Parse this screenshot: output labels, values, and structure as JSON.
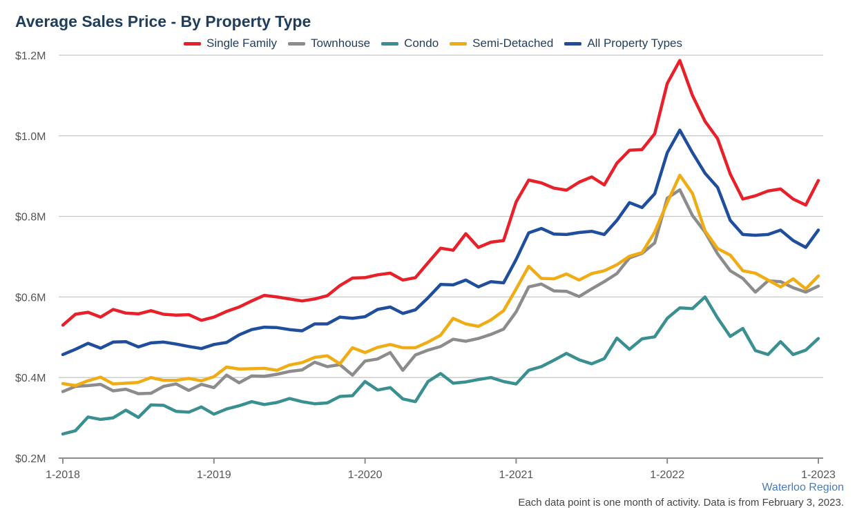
{
  "title": "Average Sales Price - By Property Type",
  "source_label": "Waterloo Region",
  "footnote": "Each data point is one month of activity. Data is from February 3, 2023.",
  "chart_data": {
    "type": "line",
    "title": "Average Sales Price - By Property Type",
    "xlabel": "",
    "ylabel": "",
    "ylim": [
      0.2,
      1.2
    ],
    "yticks": [
      0.2,
      0.4,
      0.6,
      0.8,
      1.0,
      1.2
    ],
    "ytick_labels": [
      "$0.2M",
      "$0.4M",
      "$0.6M",
      "$0.8M",
      "$1.0M",
      "$1.2M"
    ],
    "xticks": [
      "1-2018",
      "1-2019",
      "1-2020",
      "1-2021",
      "1-2022",
      "1-2023"
    ],
    "x": [
      "1-2018",
      "2-2018",
      "3-2018",
      "4-2018",
      "5-2018",
      "6-2018",
      "7-2018",
      "8-2018",
      "9-2018",
      "10-2018",
      "11-2018",
      "12-2018",
      "1-2019",
      "2-2019",
      "3-2019",
      "4-2019",
      "5-2019",
      "6-2019",
      "7-2019",
      "8-2019",
      "9-2019",
      "10-2019",
      "11-2019",
      "12-2019",
      "1-2020",
      "2-2020",
      "3-2020",
      "4-2020",
      "5-2020",
      "6-2020",
      "7-2020",
      "8-2020",
      "9-2020",
      "10-2020",
      "11-2020",
      "12-2020",
      "1-2021",
      "2-2021",
      "3-2021",
      "4-2021",
      "5-2021",
      "6-2021",
      "7-2021",
      "8-2021",
      "9-2021",
      "10-2021",
      "11-2021",
      "12-2021",
      "1-2022",
      "2-2022",
      "3-2022",
      "4-2022",
      "5-2022",
      "6-2022",
      "7-2022",
      "8-2022",
      "9-2022",
      "10-2022",
      "11-2022",
      "12-2022",
      "1-2023"
    ],
    "grid": true,
    "legend_position": "top-center",
    "series": [
      {
        "name": "Single Family",
        "color": "#e8202a",
        "values": [
          0.53,
          0.557,
          0.562,
          0.55,
          0.569,
          0.56,
          0.558,
          0.566,
          0.557,
          0.555,
          0.556,
          0.542,
          0.55,
          0.564,
          0.575,
          0.59,
          0.604,
          0.6,
          0.595,
          0.59,
          0.595,
          0.603,
          0.628,
          0.647,
          0.648,
          0.655,
          0.659,
          0.642,
          0.648,
          0.685,
          0.721,
          0.716,
          0.757,
          0.723,
          0.736,
          0.74,
          0.836,
          0.89,
          0.883,
          0.87,
          0.865,
          0.885,
          0.898,
          0.878,
          0.932,
          0.964,
          0.966,
          1.005,
          1.13,
          1.187,
          1.1,
          1.036,
          0.993,
          0.905,
          0.843,
          0.851,
          0.863,
          0.868,
          0.843,
          0.828,
          0.889
        ]
      },
      {
        "name": "Townhouse",
        "color": "#8c8c8c",
        "values": [
          0.365,
          0.378,
          0.38,
          0.383,
          0.367,
          0.371,
          0.36,
          0.361,
          0.378,
          0.384,
          0.368,
          0.383,
          0.375,
          0.406,
          0.387,
          0.404,
          0.403,
          0.408,
          0.415,
          0.419,
          0.438,
          0.427,
          0.432,
          0.406,
          0.441,
          0.446,
          0.462,
          0.418,
          0.456,
          0.468,
          0.477,
          0.495,
          0.49,
          0.497,
          0.507,
          0.52,
          0.563,
          0.625,
          0.632,
          0.615,
          0.614,
          0.601,
          0.62,
          0.638,
          0.658,
          0.697,
          0.708,
          0.734,
          0.845,
          0.866,
          0.802,
          0.761,
          0.707,
          0.665,
          0.646,
          0.612,
          0.64,
          0.638,
          0.623,
          0.612,
          0.627
        ]
      },
      {
        "name": "Condo",
        "color": "#3a9090",
        "values": [
          0.26,
          0.268,
          0.302,
          0.296,
          0.3,
          0.319,
          0.301,
          0.332,
          0.331,
          0.316,
          0.314,
          0.327,
          0.309,
          0.322,
          0.33,
          0.34,
          0.333,
          0.338,
          0.348,
          0.34,
          0.335,
          0.337,
          0.353,
          0.355,
          0.39,
          0.369,
          0.375,
          0.347,
          0.34,
          0.39,
          0.41,
          0.386,
          0.389,
          0.395,
          0.4,
          0.39,
          0.384,
          0.418,
          0.427,
          0.443,
          0.46,
          0.444,
          0.434,
          0.447,
          0.498,
          0.47,
          0.496,
          0.501,
          0.547,
          0.573,
          0.571,
          0.6,
          0.548,
          0.502,
          0.522,
          0.467,
          0.457,
          0.489,
          0.457,
          0.468,
          0.497
        ]
      },
      {
        "name": "Semi-Detached",
        "color": "#f0ac15",
        "values": [
          0.385,
          0.38,
          0.392,
          0.401,
          0.384,
          0.386,
          0.388,
          0.4,
          0.393,
          0.393,
          0.398,
          0.392,
          0.402,
          0.426,
          0.421,
          0.422,
          0.423,
          0.418,
          0.431,
          0.437,
          0.45,
          0.454,
          0.434,
          0.474,
          0.462,
          0.475,
          0.482,
          0.474,
          0.474,
          0.488,
          0.505,
          0.547,
          0.533,
          0.527,
          0.543,
          0.566,
          0.62,
          0.676,
          0.646,
          0.645,
          0.657,
          0.642,
          0.658,
          0.665,
          0.68,
          0.701,
          0.71,
          0.761,
          0.834,
          0.902,
          0.857,
          0.764,
          0.72,
          0.704,
          0.665,
          0.659,
          0.642,
          0.625,
          0.645,
          0.62,
          0.652
        ]
      },
      {
        "name": "All Property Types",
        "color": "#1f4e9c",
        "values": [
          0.457,
          0.47,
          0.485,
          0.473,
          0.488,
          0.489,
          0.476,
          0.486,
          0.488,
          0.483,
          0.477,
          0.472,
          0.482,
          0.487,
          0.506,
          0.519,
          0.525,
          0.524,
          0.519,
          0.516,
          0.533,
          0.533,
          0.55,
          0.547,
          0.551,
          0.569,
          0.575,
          0.559,
          0.568,
          0.598,
          0.631,
          0.63,
          0.642,
          0.625,
          0.638,
          0.635,
          0.693,
          0.759,
          0.77,
          0.756,
          0.755,
          0.76,
          0.763,
          0.755,
          0.79,
          0.834,
          0.822,
          0.856,
          0.958,
          1.014,
          0.958,
          0.907,
          0.872,
          0.79,
          0.755,
          0.753,
          0.755,
          0.766,
          0.74,
          0.723,
          0.766
        ]
      }
    ]
  }
}
